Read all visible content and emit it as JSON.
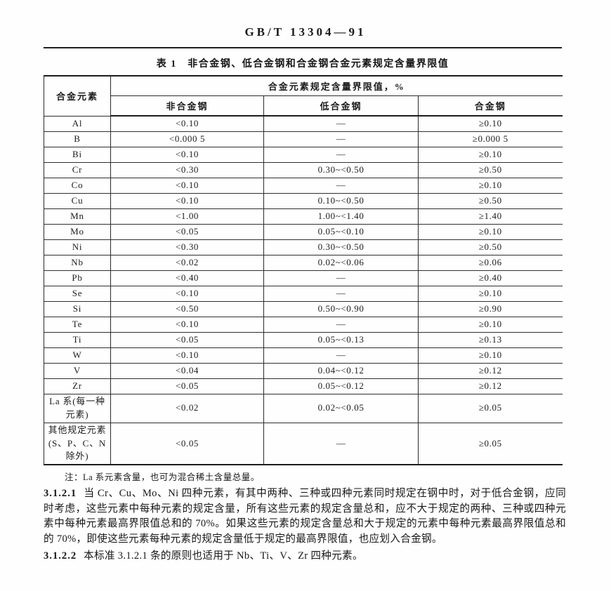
{
  "doc": {
    "number": "GB/T 13304—91",
    "table_caption": "表 1　非合金钢、低合金钢和合金钢合金元素规定含量界限值"
  },
  "table": {
    "col_element": "合金元素",
    "col_group": "合金元素规定含量界限值，%",
    "col_nonalloy": "非合金钢",
    "col_lowalloy": "低合金钢",
    "col_alloy": "合金钢",
    "rows": [
      {
        "element": "Al",
        "nonalloy": "<0.10",
        "lowalloy": "—",
        "alloy": "≥0.10"
      },
      {
        "element": "B",
        "nonalloy": "<0.000 5",
        "lowalloy": "—",
        "alloy": "≥0.000 5"
      },
      {
        "element": "Bi",
        "nonalloy": "<0.10",
        "lowalloy": "—",
        "alloy": "≥0.10"
      },
      {
        "element": "Cr",
        "nonalloy": "<0.30",
        "lowalloy": "0.30~<0.50",
        "alloy": "≥0.50"
      },
      {
        "element": "Co",
        "nonalloy": "<0.10",
        "lowalloy": "—",
        "alloy": "≥0.10"
      },
      {
        "element": "Cu",
        "nonalloy": "<0.10",
        "lowalloy": "0.10~<0.50",
        "alloy": "≥0.50"
      },
      {
        "element": "Mn",
        "nonalloy": "<1.00",
        "lowalloy": "1.00~<1.40",
        "alloy": "≥1.40"
      },
      {
        "element": "Mo",
        "nonalloy": "<0.05",
        "lowalloy": "0.05~<0.10",
        "alloy": "≥0.10"
      },
      {
        "element": "Ni",
        "nonalloy": "<0.30",
        "lowalloy": "0.30~<0.50",
        "alloy": "≥0.50"
      },
      {
        "element": "Nb",
        "nonalloy": "<0.02",
        "lowalloy": "0.02~<0.06",
        "alloy": "≥0.06"
      },
      {
        "element": "Pb",
        "nonalloy": "<0.40",
        "lowalloy": "—",
        "alloy": "≥0.40"
      },
      {
        "element": "Se",
        "nonalloy": "<0.10",
        "lowalloy": "—",
        "alloy": "≥0.10"
      },
      {
        "element": "Si",
        "nonalloy": "<0.50",
        "lowalloy": "0.50~<0.90",
        "alloy": "≥0.90"
      },
      {
        "element": "Te",
        "nonalloy": "<0.10",
        "lowalloy": "—",
        "alloy": "≥0.10"
      },
      {
        "element": "Ti",
        "nonalloy": "<0.05",
        "lowalloy": "0.05~<0.13",
        "alloy": "≥0.13"
      },
      {
        "element": "W",
        "nonalloy": "<0.10",
        "lowalloy": "—",
        "alloy": "≥0.10"
      },
      {
        "element": "V",
        "nonalloy": "<0.04",
        "lowalloy": "0.04~<0.12",
        "alloy": "≥0.12"
      },
      {
        "element": "Zr",
        "nonalloy": "<0.05",
        "lowalloy": "0.05~<0.12",
        "alloy": "≥0.12"
      },
      {
        "element": "La 系(每一种元素)",
        "nonalloy": "<0.02",
        "lowalloy": "0.02~<0.05",
        "alloy": "≥0.05"
      },
      {
        "element": "其他规定元素(S、P、C、N 除外)",
        "nonalloy": "<0.05",
        "lowalloy": "—",
        "alloy": "≥0.05"
      }
    ],
    "note": "注：La 系元素含量，也可为混合稀土含量总量。"
  },
  "paragraphs": [
    {
      "number": "3.1.2.1",
      "text": "当 Cr、Cu、Mo、Ni 四种元素，有其中两种、三种或四种元素同时规定在钢中时，对于低合金钢，应同时考虑，这些元素中每种元素的规定含量，所有这些元素的规定含量总和，应不大于规定的两种、三种或四种元素中每种元素最高界限值总和的 70%。如果这些元素的规定含量总和大于规定的元素中每种元素最高界限值总和的 70%，即使这些元素每种元素的规定含量低于规定的最高界限值，也应划入合金钢。"
    },
    {
      "number": "3.1.2.2",
      "text": "本标准 3.1.2.1 条的原则也适用于 Nb、Ti、V、Zr 四种元素。"
    }
  ],
  "colors": {
    "ink": "#1c1c1c",
    "paper": "#fefefe"
  }
}
